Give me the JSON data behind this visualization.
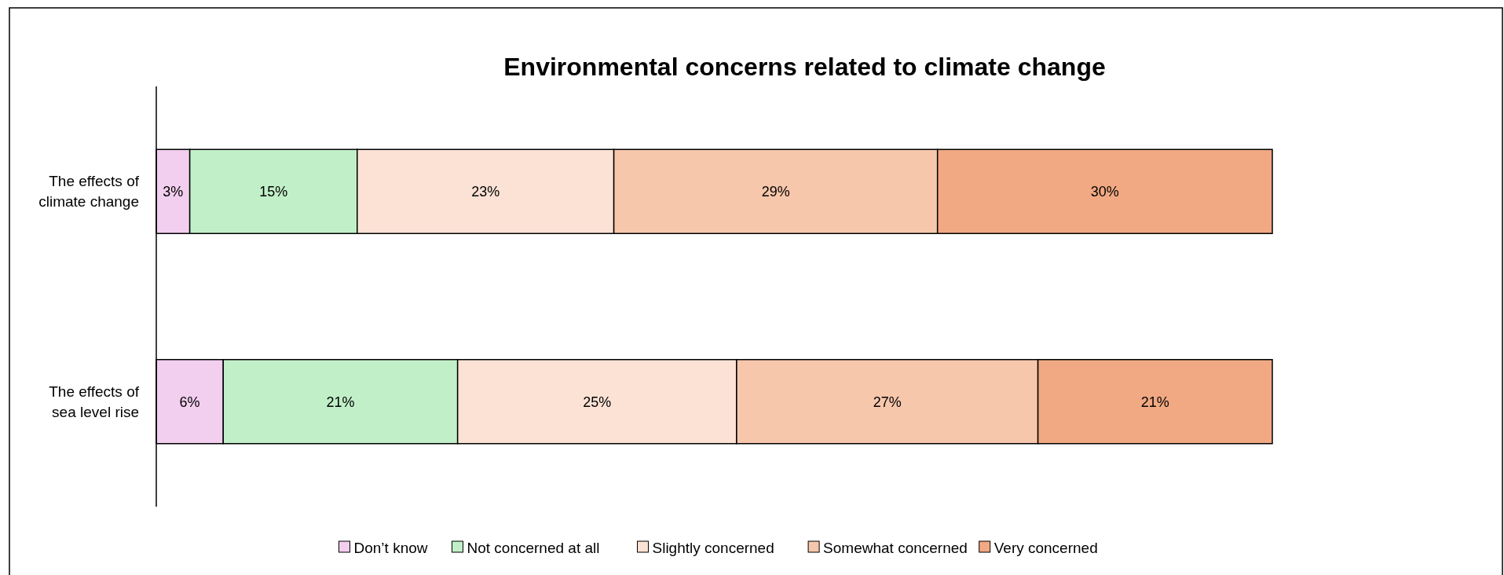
{
  "chart_data": {
    "type": "bar",
    "title": "Environmental concerns related to climate change",
    "orientation": "horizontal",
    "stacked": true,
    "categories": [
      "The effects of climate change",
      "The effects of sea level rise"
    ],
    "xlim": [
      0,
      100
    ],
    "tick_labels": "y",
    "legend": "bottom",
    "series": [
      {
        "name": "Don’t know",
        "color": "#f2ceef",
        "values": [
          3,
          6
        ],
        "value_labels": [
          "3%",
          "6%"
        ]
      },
      {
        "name": "Not concerned at all",
        "color": "#c1f0c8",
        "values": [
          15,
          21
        ],
        "value_labels": [
          "15%",
          "21%"
        ]
      },
      {
        "name": "Slightly concerned",
        "color": "#fbe2d5",
        "values": [
          23,
          25
        ],
        "value_labels": [
          "23%",
          "25%"
        ]
      },
      {
        "name": "Somewhat concerned",
        "color": "#f7c7ac",
        "values": [
          29,
          27
        ],
        "value_labels": [
          "29%",
          "27%"
        ]
      },
      {
        "name": "Very concerned",
        "color": "#f1a983",
        "values": [
          30,
          21
        ],
        "value_labels": [
          "30%",
          "21%"
        ]
      }
    ]
  }
}
